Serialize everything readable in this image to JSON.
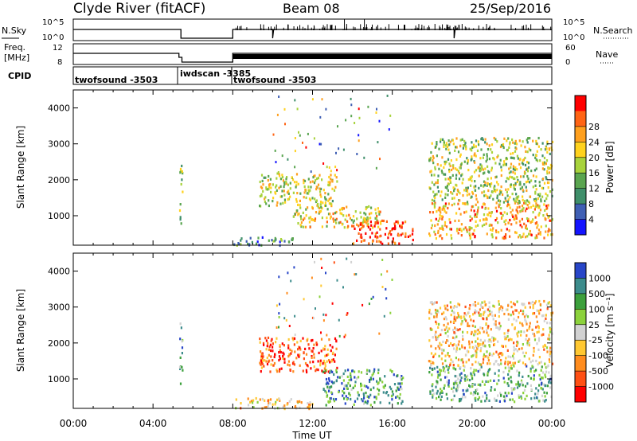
{
  "header": {
    "station": "Clyde River (fitACF)",
    "beam": "Beam 08",
    "date": "25/Sep/2016"
  },
  "params": {
    "nsky": {
      "label": "N.Sky",
      "ticks": [
        "10^5",
        "10^0"
      ],
      "right_label": "N.Search",
      "right_ticks": [
        "10^5",
        "10^0"
      ]
    },
    "freq": {
      "label": "Freq.",
      "unit": "[MHz]",
      "ticks": [
        "12",
        "8"
      ],
      "right_label": "Nave",
      "right_ticks": [
        "60",
        "0"
      ]
    },
    "cpid": {
      "label": "CPID",
      "segments": [
        {
          "name": "twofsound -3503"
        },
        {
          "name": "iwdscan -3385"
        },
        {
          "name": "twofsound -3503"
        }
      ]
    }
  },
  "xaxis": {
    "label": "Time UT",
    "ticks": [
      "00:00",
      "04:00",
      "08:00",
      "12:00",
      "16:00",
      "20:00",
      "00:00"
    ]
  },
  "chart_data": [
    {
      "type": "heatmap",
      "panel": "power",
      "ylabel": "Slant Range [km]",
      "yticks": [
        "1000",
        "2000",
        "3000",
        "4000"
      ],
      "ylim": [
        180,
        4500
      ],
      "xlim_hours": [
        0,
        24
      ],
      "colorbar": {
        "label": "Power [dB]",
        "ticks": [
          "4",
          "8",
          "12",
          "16",
          "20",
          "24",
          "28"
        ],
        "colors": [
          "#1414ff",
          "#3f5fb4",
          "#3f8f6a",
          "#5aa550",
          "#a8d33c",
          "#ffd21e",
          "#ffa01e",
          "#ff6414",
          "#ff0000"
        ]
      },
      "scatter_blocks": [
        {
          "t0": 5.3,
          "t1": 5.45,
          "r0": 700,
          "r1": 2600,
          "level": 0.45
        },
        {
          "t0": 8.0,
          "t1": 11.0,
          "r0": 200,
          "r1": 450,
          "level": 0.3
        },
        {
          "t0": 9.3,
          "t1": 13.2,
          "r0": 1300,
          "r1": 2200,
          "level": 0.55
        },
        {
          "t0": 11.0,
          "t1": 15.5,
          "r0": 700,
          "r1": 1300,
          "level": 0.6
        },
        {
          "t0": 14.0,
          "t1": 17.0,
          "r0": 250,
          "r1": 900,
          "level": 0.9
        },
        {
          "t0": 17.8,
          "t1": 24.0,
          "r0": 400,
          "r1": 1400,
          "level": 0.7
        },
        {
          "t0": 17.8,
          "t1": 24.0,
          "r0": 1400,
          "r1": 3200,
          "level": 0.5
        }
      ]
    },
    {
      "type": "heatmap",
      "panel": "velocity",
      "ylabel": "Slant Range [km]",
      "yticks": [
        "1000",
        "2000",
        "3000",
        "4000"
      ],
      "ylim": [
        180,
        4500
      ],
      "xlim_hours": [
        0,
        24
      ],
      "colorbar": {
        "label": "Velocity [m s⁻¹]",
        "ticks": [
          "1000",
          "500",
          "100",
          "25",
          "-25",
          "-100",
          "-500",
          "-1000"
        ],
        "colors": [
          "#2846c8",
          "#3c8c8c",
          "#3ca03c",
          "#8cd23c",
          "#d2d2d2",
          "#ffc832",
          "#ff8c1e",
          "#ff5014",
          "#ff0000"
        ]
      },
      "scatter_blocks": [
        {
          "t0": 5.3,
          "t1": 5.45,
          "r0": 700,
          "r1": 2600,
          "level": 0.3
        },
        {
          "t0": 8.0,
          "t1": 12.0,
          "r0": 200,
          "r1": 500,
          "level": 0.6
        },
        {
          "t0": 9.3,
          "t1": 13.2,
          "r0": 1200,
          "r1": 2200,
          "level": 0.8
        },
        {
          "t0": 12.5,
          "t1": 16.5,
          "r0": 300,
          "r1": 1300,
          "level": 0.25
        },
        {
          "t0": 17.8,
          "t1": 24.0,
          "r0": 400,
          "r1": 1400,
          "level": 0.3
        },
        {
          "t0": 17.8,
          "t1": 24.0,
          "r0": 1400,
          "r1": 3200,
          "level": 0.6
        }
      ]
    }
  ]
}
